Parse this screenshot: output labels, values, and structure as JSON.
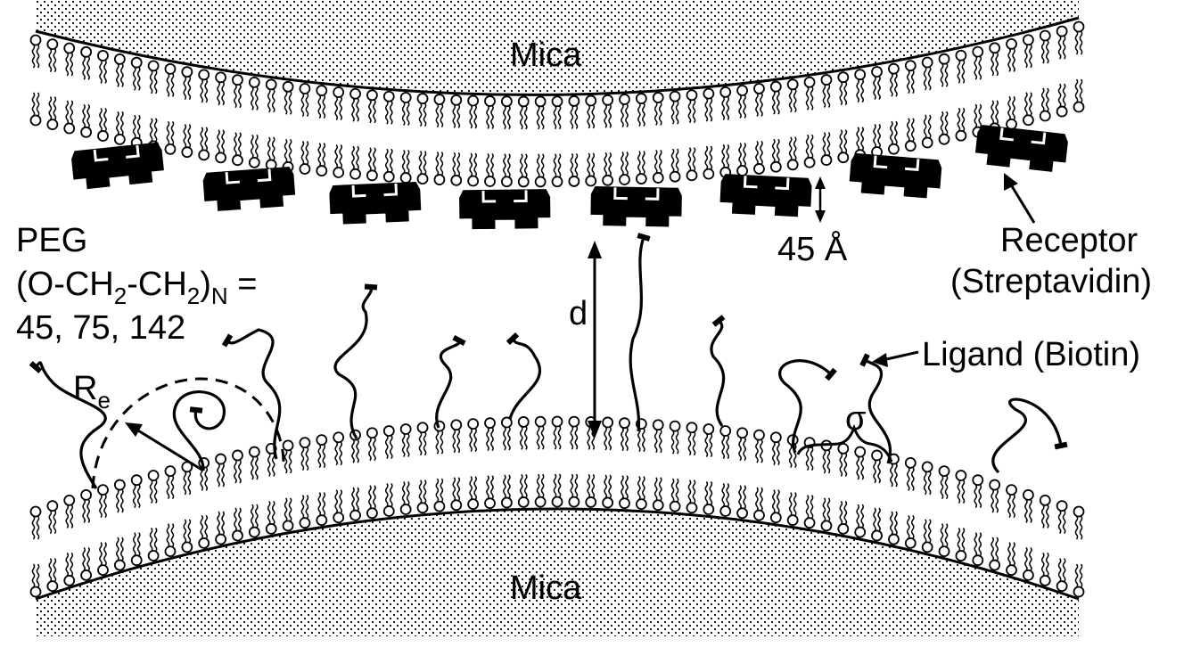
{
  "labels": {
    "mica_top": "Mica",
    "mica_bottom": "Mica",
    "peg_line1": "PEG",
    "peg_line2_prefix": "(O-CH",
    "peg_sub_2a": "2",
    "peg_line2_mid": "-CH",
    "peg_sub_2b": "2",
    "peg_line2_close": ")",
    "peg_sub_n": "N",
    "peg_line2_suffix": " =",
    "peg_line3": "45, 75, 142",
    "receptor_line1": "Receptor",
    "receptor_line2": "(Streptavidin)",
    "ligand": "Ligand (Biotin)",
    "distance": "d",
    "thickness": "45 Å",
    "radius_main": "R",
    "radius_sub": "e",
    "spacing": "σ"
  },
  "colors": {
    "ink": "#000000",
    "background": "#ffffff",
    "mica_dots": "#000000"
  },
  "icons": {
    "lipid": "lipid-molecule-icon",
    "receptor": "streptavidin-receptor-icon",
    "ligand": "biotin-ligand-icon",
    "charge": "negative-charge-icon"
  }
}
